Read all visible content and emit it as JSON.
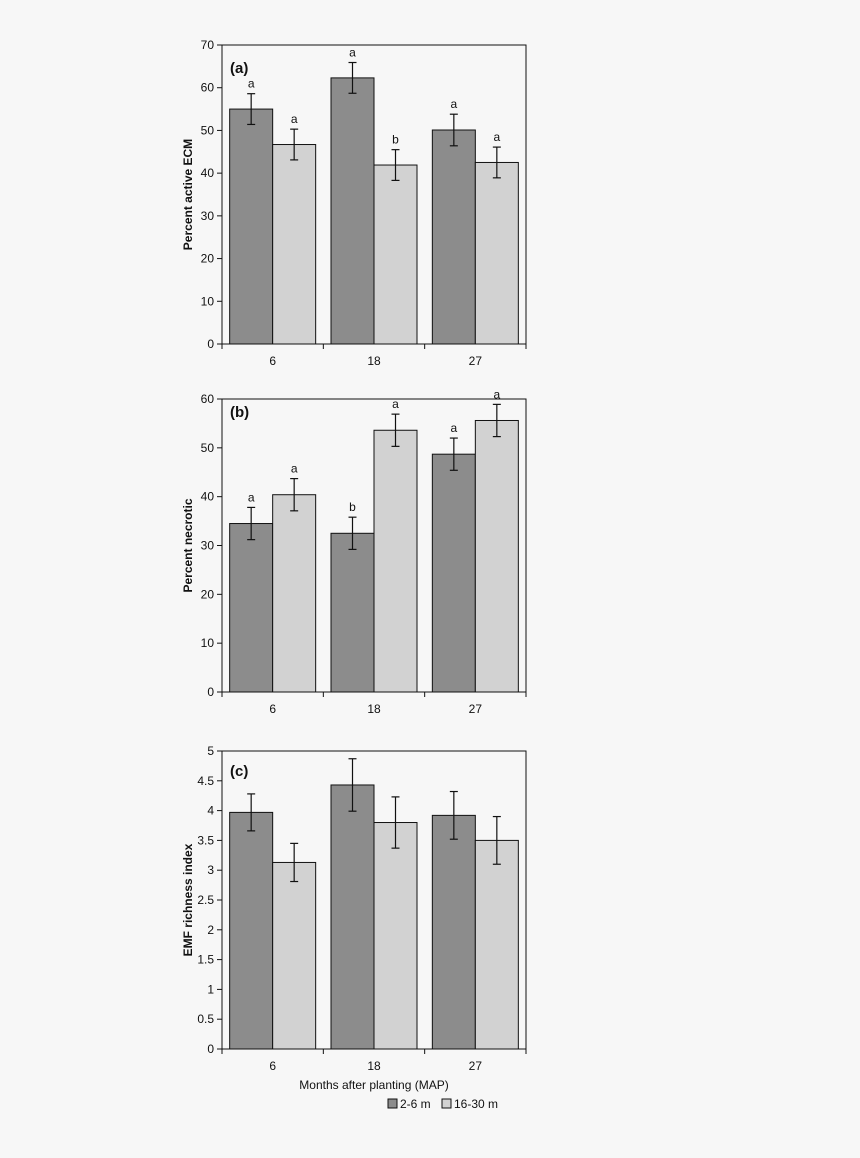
{
  "chart_data": [
    {
      "type": "bar",
      "panel_label": "(a)",
      "ylabel": "Percent active ECM",
      "categories": [
        "6",
        "18",
        "27"
      ],
      "ylim": [
        0,
        70
      ],
      "yticks": [
        0,
        10,
        20,
        30,
        40,
        50,
        60,
        70
      ],
      "series": [
        {
          "name": "2-6 m",
          "values": [
            55,
            62.3,
            50.1
          ],
          "errors": [
            3.6,
            3.6,
            3.7
          ],
          "letters": [
            "a",
            "a",
            "a"
          ]
        },
        {
          "name": "16-30 m",
          "values": [
            46.7,
            41.9,
            42.5
          ],
          "errors": [
            3.6,
            3.6,
            3.6
          ],
          "letters": [
            "a",
            "b",
            "a"
          ]
        }
      ]
    },
    {
      "type": "bar",
      "panel_label": "(b)",
      "ylabel": "Percent necrotic",
      "categories": [
        "6",
        "18",
        "27"
      ],
      "ylim": [
        0,
        60
      ],
      "yticks": [
        0,
        10,
        20,
        30,
        40,
        50,
        60
      ],
      "series": [
        {
          "name": "2-6 m",
          "values": [
            34.5,
            32.5,
            48.7
          ],
          "errors": [
            3.3,
            3.3,
            3.3
          ],
          "letters": [
            "a",
            "b",
            "a"
          ]
        },
        {
          "name": "16-30 m",
          "values": [
            40.4,
            53.6,
            55.6
          ],
          "errors": [
            3.3,
            3.3,
            3.3
          ],
          "letters": [
            "a",
            "a",
            "a"
          ]
        }
      ]
    },
    {
      "type": "bar",
      "panel_label": "(c)",
      "ylabel": "EMF richness index",
      "xlabel": "Months after planting (MAP)",
      "categories": [
        "6",
        "18",
        "27"
      ],
      "ylim": [
        0,
        5
      ],
      "yticks": [
        "0",
        "0.5",
        "1",
        "1.5",
        "2",
        "2.5",
        "3",
        "3.5",
        "4",
        "4.5",
        "5"
      ],
      "series": [
        {
          "name": "2-6 m",
          "values": [
            3.97,
            4.43,
            3.92
          ],
          "errors": [
            0.31,
            0.44,
            0.4
          ],
          "letters": [
            "",
            "",
            ""
          ]
        },
        {
          "name": "16-30 m",
          "values": [
            3.13,
            3.8,
            3.5
          ],
          "errors": [
            0.32,
            0.43,
            0.4
          ],
          "letters": [
            "",
            "",
            ""
          ]
        }
      ]
    }
  ],
  "legend": {
    "items": [
      {
        "label": "2-6 m",
        "color": "#8c8c8c"
      },
      {
        "label": "16-30 m",
        "color": "#d2d2d2"
      }
    ]
  },
  "colors": {
    "series1": "#8c8c8c",
    "series2": "#d2d2d2",
    "stroke": "#111111"
  }
}
